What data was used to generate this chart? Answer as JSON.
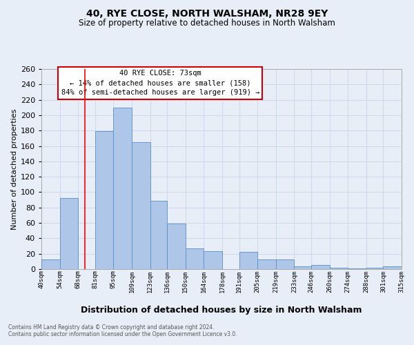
{
  "title1": "40, RYE CLOSE, NORTH WALSHAM, NR28 9EY",
  "title2": "Size of property relative to detached houses in North Walsham",
  "xlabel": "Distribution of detached houses by size in North Walsham",
  "ylabel": "Number of detached properties",
  "bin_labels": [
    "40sqm",
    "54sqm",
    "68sqm",
    "81sqm",
    "95sqm",
    "109sqm",
    "123sqm",
    "136sqm",
    "150sqm",
    "164sqm",
    "178sqm",
    "191sqm",
    "205sqm",
    "219sqm",
    "233sqm",
    "246sqm",
    "260sqm",
    "274sqm",
    "288sqm",
    "301sqm",
    "315sqm"
  ],
  "bar_values": [
    13,
    92,
    0,
    179,
    210,
    165,
    89,
    59,
    27,
    23,
    0,
    22,
    13,
    13,
    4,
    5,
    2,
    1,
    2,
    4
  ],
  "bin_edges": [
    40,
    54,
    68,
    81,
    95,
    109,
    123,
    136,
    150,
    164,
    178,
    191,
    205,
    219,
    233,
    246,
    260,
    274,
    288,
    301,
    315
  ],
  "bar_color": "#aec6e8",
  "bar_edge_color": "#5a8fc2",
  "redline_x": 73,
  "ylim": [
    0,
    260
  ],
  "yticks": [
    0,
    20,
    40,
    60,
    80,
    100,
    120,
    140,
    160,
    180,
    200,
    220,
    240,
    260
  ],
  "annotation_title": "40 RYE CLOSE: 73sqm",
  "annotation_line1": "← 14% of detached houses are smaller (158)",
  "annotation_line2": "84% of semi-detached houses are larger (919) →",
  "annotation_box_color": "#ffffff",
  "annotation_box_edge": "#cc0000",
  "footer1": "Contains HM Land Registry data © Crown copyright and database right 2024.",
  "footer2": "Contains public sector information licensed under the Open Government Licence v3.0.",
  "bg_color": "#e8eef8",
  "grid_color": "#c8d4e8",
  "title_fontsize": 10,
  "subtitle_fontsize": 8.5,
  "ylabel_fontsize": 8,
  "xlabel_fontsize": 9,
  "xtick_fontsize": 6.5,
  "ytick_fontsize": 8,
  "annotation_fontsize": 7.5,
  "footer_fontsize": 5.5
}
